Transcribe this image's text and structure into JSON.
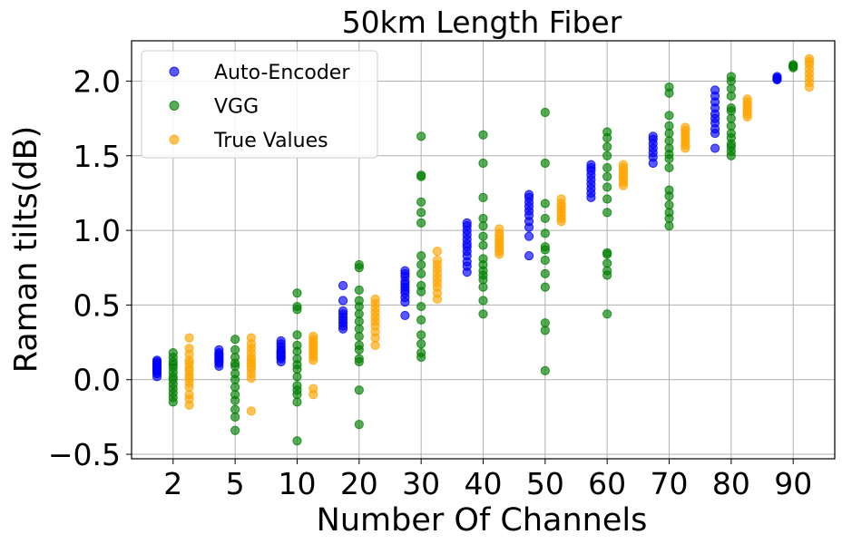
{
  "chart_data": {
    "type": "scatter",
    "title": "50km Length Fiber",
    "xlabel": "Number Of Channels",
    "ylabel": "Raman tilts(dB)",
    "categories": [
      "2",
      "5",
      "10",
      "20",
      "30",
      "40",
      "50",
      "60",
      "70",
      "80",
      "90"
    ],
    "ylim": [
      -0.53,
      2.27
    ],
    "yticks": [
      "−0.5",
      "0.0",
      "0.5",
      "1.0",
      "1.5",
      "2.0"
    ],
    "ytick_values": [
      -0.5,
      0.0,
      0.5,
      1.0,
      1.5,
      2.0
    ],
    "grid": true,
    "legend_position": "top-left",
    "series": [
      {
        "name": "Auto-Encoder",
        "color": "#0000ff",
        "offset": -0.26,
        "values": [
          [
            0.02,
            0.04,
            0.05,
            0.06,
            0.07,
            0.08,
            0.09,
            0.1,
            0.11,
            0.12,
            0.13
          ],
          [
            0.09,
            0.11,
            0.12,
            0.13,
            0.14,
            0.15,
            0.16,
            0.17,
            0.18,
            0.2
          ],
          [
            0.12,
            0.14,
            0.15,
            0.16,
            0.17,
            0.18,
            0.19,
            0.2,
            0.22,
            0.24,
            0.26
          ],
          [
            0.34,
            0.36,
            0.38,
            0.4,
            0.42,
            0.44,
            0.46,
            0.53,
            0.63
          ],
          [
            0.43,
            0.52,
            0.55,
            0.58,
            0.6,
            0.62,
            0.64,
            0.66,
            0.69,
            0.71,
            0.73
          ],
          [
            0.72,
            0.76,
            0.79,
            0.83,
            0.86,
            0.89,
            0.91,
            0.94,
            0.97,
            1.0,
            1.03,
            1.05
          ],
          [
            0.83,
            0.96,
            1.02,
            1.06,
            1.1,
            1.13,
            1.16,
            1.19,
            1.22,
            1.24
          ],
          [
            1.22,
            1.25,
            1.28,
            1.31,
            1.34,
            1.37,
            1.4,
            1.42,
            1.44
          ],
          [
            1.45,
            1.49,
            1.52,
            1.55,
            1.58,
            1.61,
            1.63
          ],
          [
            1.55,
            1.65,
            1.68,
            1.72,
            1.75,
            1.78,
            1.82,
            1.86,
            1.9,
            1.94
          ],
          [
            2.01,
            2.01,
            2.02,
            2.02,
            2.03
          ]
        ]
      },
      {
        "name": "VGG",
        "color": "#008000",
        "offset": 0.0,
        "values": [
          [
            -0.15,
            -0.12,
            -0.09,
            -0.06,
            -0.03,
            0.0,
            0.02,
            0.05,
            0.08,
            0.1,
            0.12,
            0.15,
            0.18
          ],
          [
            -0.34,
            -0.25,
            -0.2,
            -0.14,
            -0.1,
            -0.05,
            0.0,
            0.04,
            0.09,
            0.11,
            0.15,
            0.2,
            0.27
          ],
          [
            -0.41,
            -0.15,
            -0.1,
            -0.07,
            -0.04,
            0.02,
            0.07,
            0.1,
            0.14,
            0.19,
            0.23,
            0.3,
            0.47,
            0.49,
            0.58
          ],
          [
            -0.3,
            -0.07,
            0.12,
            0.14,
            0.2,
            0.23,
            0.29,
            0.34,
            0.39,
            0.44,
            0.49,
            0.53,
            0.6,
            0.75,
            0.77
          ],
          [
            0.15,
            0.18,
            0.24,
            0.3,
            0.4,
            0.49,
            0.59,
            0.63,
            0.71,
            0.77,
            0.83,
            1.05,
            1.12,
            1.19,
            1.36,
            1.37,
            1.63
          ],
          [
            0.44,
            0.53,
            0.62,
            0.67,
            0.7,
            0.73,
            0.77,
            0.81,
            0.9,
            0.96,
            1.03,
            1.08,
            1.22,
            1.45,
            1.64
          ],
          [
            0.06,
            0.33,
            0.38,
            0.62,
            0.71,
            0.8,
            0.87,
            0.89,
            0.98,
            1.08,
            1.18,
            1.45,
            1.79
          ],
          [
            0.44,
            0.7,
            0.73,
            0.78,
            0.84,
            0.85,
            1.12,
            1.21,
            1.29,
            1.36,
            1.42,
            1.5,
            1.56,
            1.62,
            1.66
          ],
          [
            1.03,
            1.08,
            1.12,
            1.17,
            1.23,
            1.27,
            1.42,
            1.48,
            1.51,
            1.55,
            1.6,
            1.65,
            1.7,
            1.77,
            1.92,
            1.96
          ],
          [
            1.5,
            1.53,
            1.56,
            1.58,
            1.62,
            1.65,
            1.7,
            1.75,
            1.8,
            1.82,
            1.9,
            1.95,
            2.0,
            2.03
          ],
          [
            2.09,
            2.1,
            2.1,
            2.11
          ]
        ]
      },
      {
        "name": "True Values",
        "color": "#ffa500",
        "offset": 0.26,
        "values": [
          [
            -0.17,
            -0.13,
            -0.1,
            -0.05,
            -0.02,
            0.01,
            0.03,
            0.06,
            0.08,
            0.11,
            0.13,
            0.17,
            0.21,
            0.28
          ],
          [
            -0.21,
            0.01,
            0.04,
            0.07,
            0.09,
            0.11,
            0.13,
            0.15,
            0.18,
            0.21,
            0.24,
            0.28
          ],
          [
            -0.1,
            -0.06,
            0.13,
            0.15,
            0.17,
            0.19,
            0.21,
            0.23,
            0.25,
            0.27,
            0.29
          ],
          [
            0.23,
            0.28,
            0.32,
            0.36,
            0.39,
            0.42,
            0.45,
            0.48,
            0.51,
            0.54
          ],
          [
            0.54,
            0.58,
            0.62,
            0.65,
            0.68,
            0.71,
            0.74,
            0.77,
            0.8,
            0.86
          ],
          [
            0.84,
            0.86,
            0.88,
            0.9,
            0.92,
            0.94,
            0.96,
            0.98,
            1.01
          ],
          [
            1.06,
            1.08,
            1.1,
            1.12,
            1.14,
            1.16,
            1.18,
            1.21
          ],
          [
            1.3,
            1.32,
            1.34,
            1.36,
            1.38,
            1.4,
            1.42,
            1.44
          ],
          [
            1.55,
            1.57,
            1.59,
            1.61,
            1.63,
            1.65,
            1.67,
            1.69
          ],
          [
            1.76,
            1.78,
            1.8,
            1.82,
            1.84,
            1.86,
            1.88
          ],
          [
            1.96,
            1.99,
            2.02,
            2.05,
            2.08,
            2.11,
            2.13,
            2.15
          ]
        ]
      }
    ]
  }
}
